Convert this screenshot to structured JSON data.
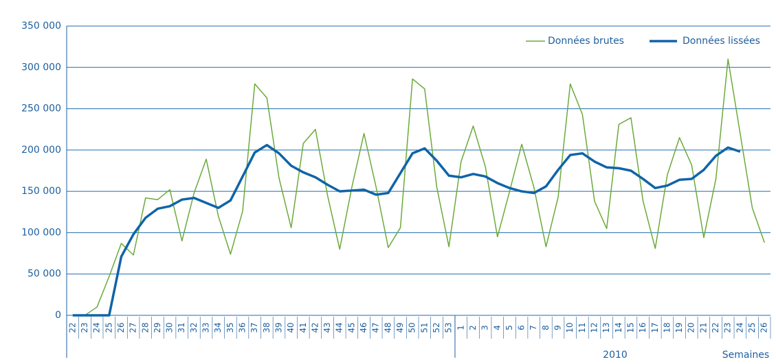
{
  "chart_data": {
    "type": "line",
    "categories": [
      "22",
      "23",
      "24",
      "25",
      "26",
      "27",
      "28",
      "29",
      "30",
      "31",
      "32",
      "33",
      "34",
      "35",
      "36",
      "37",
      "38",
      "39",
      "40",
      "41",
      "42",
      "43",
      "44",
      "45",
      "46",
      "47",
      "48",
      "49",
      "50",
      "51",
      "52",
      "53",
      "1",
      "2",
      "3",
      "4",
      "5",
      "6",
      "7",
      "8",
      "9",
      "10",
      "11",
      "12",
      "13",
      "14",
      "15",
      "16",
      "17",
      "18",
      "19",
      "20",
      "21",
      "22",
      "23",
      "24",
      "25",
      "26"
    ],
    "series": [
      {
        "name": "Données brutes",
        "color": "#6aaa3a",
        "width": 1.5,
        "values": [
          0,
          0,
          10000,
          47000,
          87000,
          73000,
          142000,
          140000,
          152000,
          90000,
          148000,
          189000,
          120000,
          74000,
          126000,
          280000,
          263000,
          166000,
          106000,
          208000,
          225000,
          145000,
          80000,
          155000,
          220000,
          155000,
          82000,
          106000,
          286000,
          274000,
          155000,
          83000,
          186000,
          229000,
          180000,
          95000,
          150000,
          207000,
          155000,
          83000,
          143000,
          280000,
          243000,
          138000,
          105000,
          231000,
          239000,
          138000,
          81000,
          170000,
          215000,
          182000,
          94000,
          165000,
          310000,
          220000,
          130000,
          88000
        ]
      },
      {
        "name": "Données lissées",
        "color": "#0f64a8",
        "width": 3.5,
        "values": [
          0,
          0,
          0,
          0,
          71000,
          98000,
          118000,
          129000,
          132000,
          140000,
          142000,
          136000,
          130000,
          139000,
          168000,
          197000,
          206000,
          196000,
          181000,
          173000,
          167000,
          158000,
          150000,
          151000,
          152000,
          146000,
          148000,
          172000,
          196000,
          202000,
          187000,
          169000,
          167000,
          171000,
          168000,
          160000,
          154000,
          150000,
          148000,
          156000,
          176000,
          194000,
          196000,
          186000,
          179000,
          178000,
          175000,
          165000,
          154000,
          157000,
          164000,
          165000,
          176000,
          193000,
          203000,
          198000,
          null,
          null
        ]
      }
    ],
    "ylim": [
      0,
      350000
    ],
    "yticks": [
      0,
      {
        "value": 50000,
        "label": "50 000"
      },
      {
        "value": 100000,
        "label": "100 000"
      },
      {
        "value": 150000,
        "label": "150 000"
      },
      {
        "value": 200000,
        "label": "200 000"
      },
      {
        "value": 250000,
        "label": "250 000"
      },
      {
        "value": 300000,
        "label": "300 000"
      },
      {
        "value": 350000,
        "label": "350 000"
      }
    ],
    "grid": true,
    "legend": "upper right",
    "year_label": "2010",
    "x_label": "Semaines"
  }
}
